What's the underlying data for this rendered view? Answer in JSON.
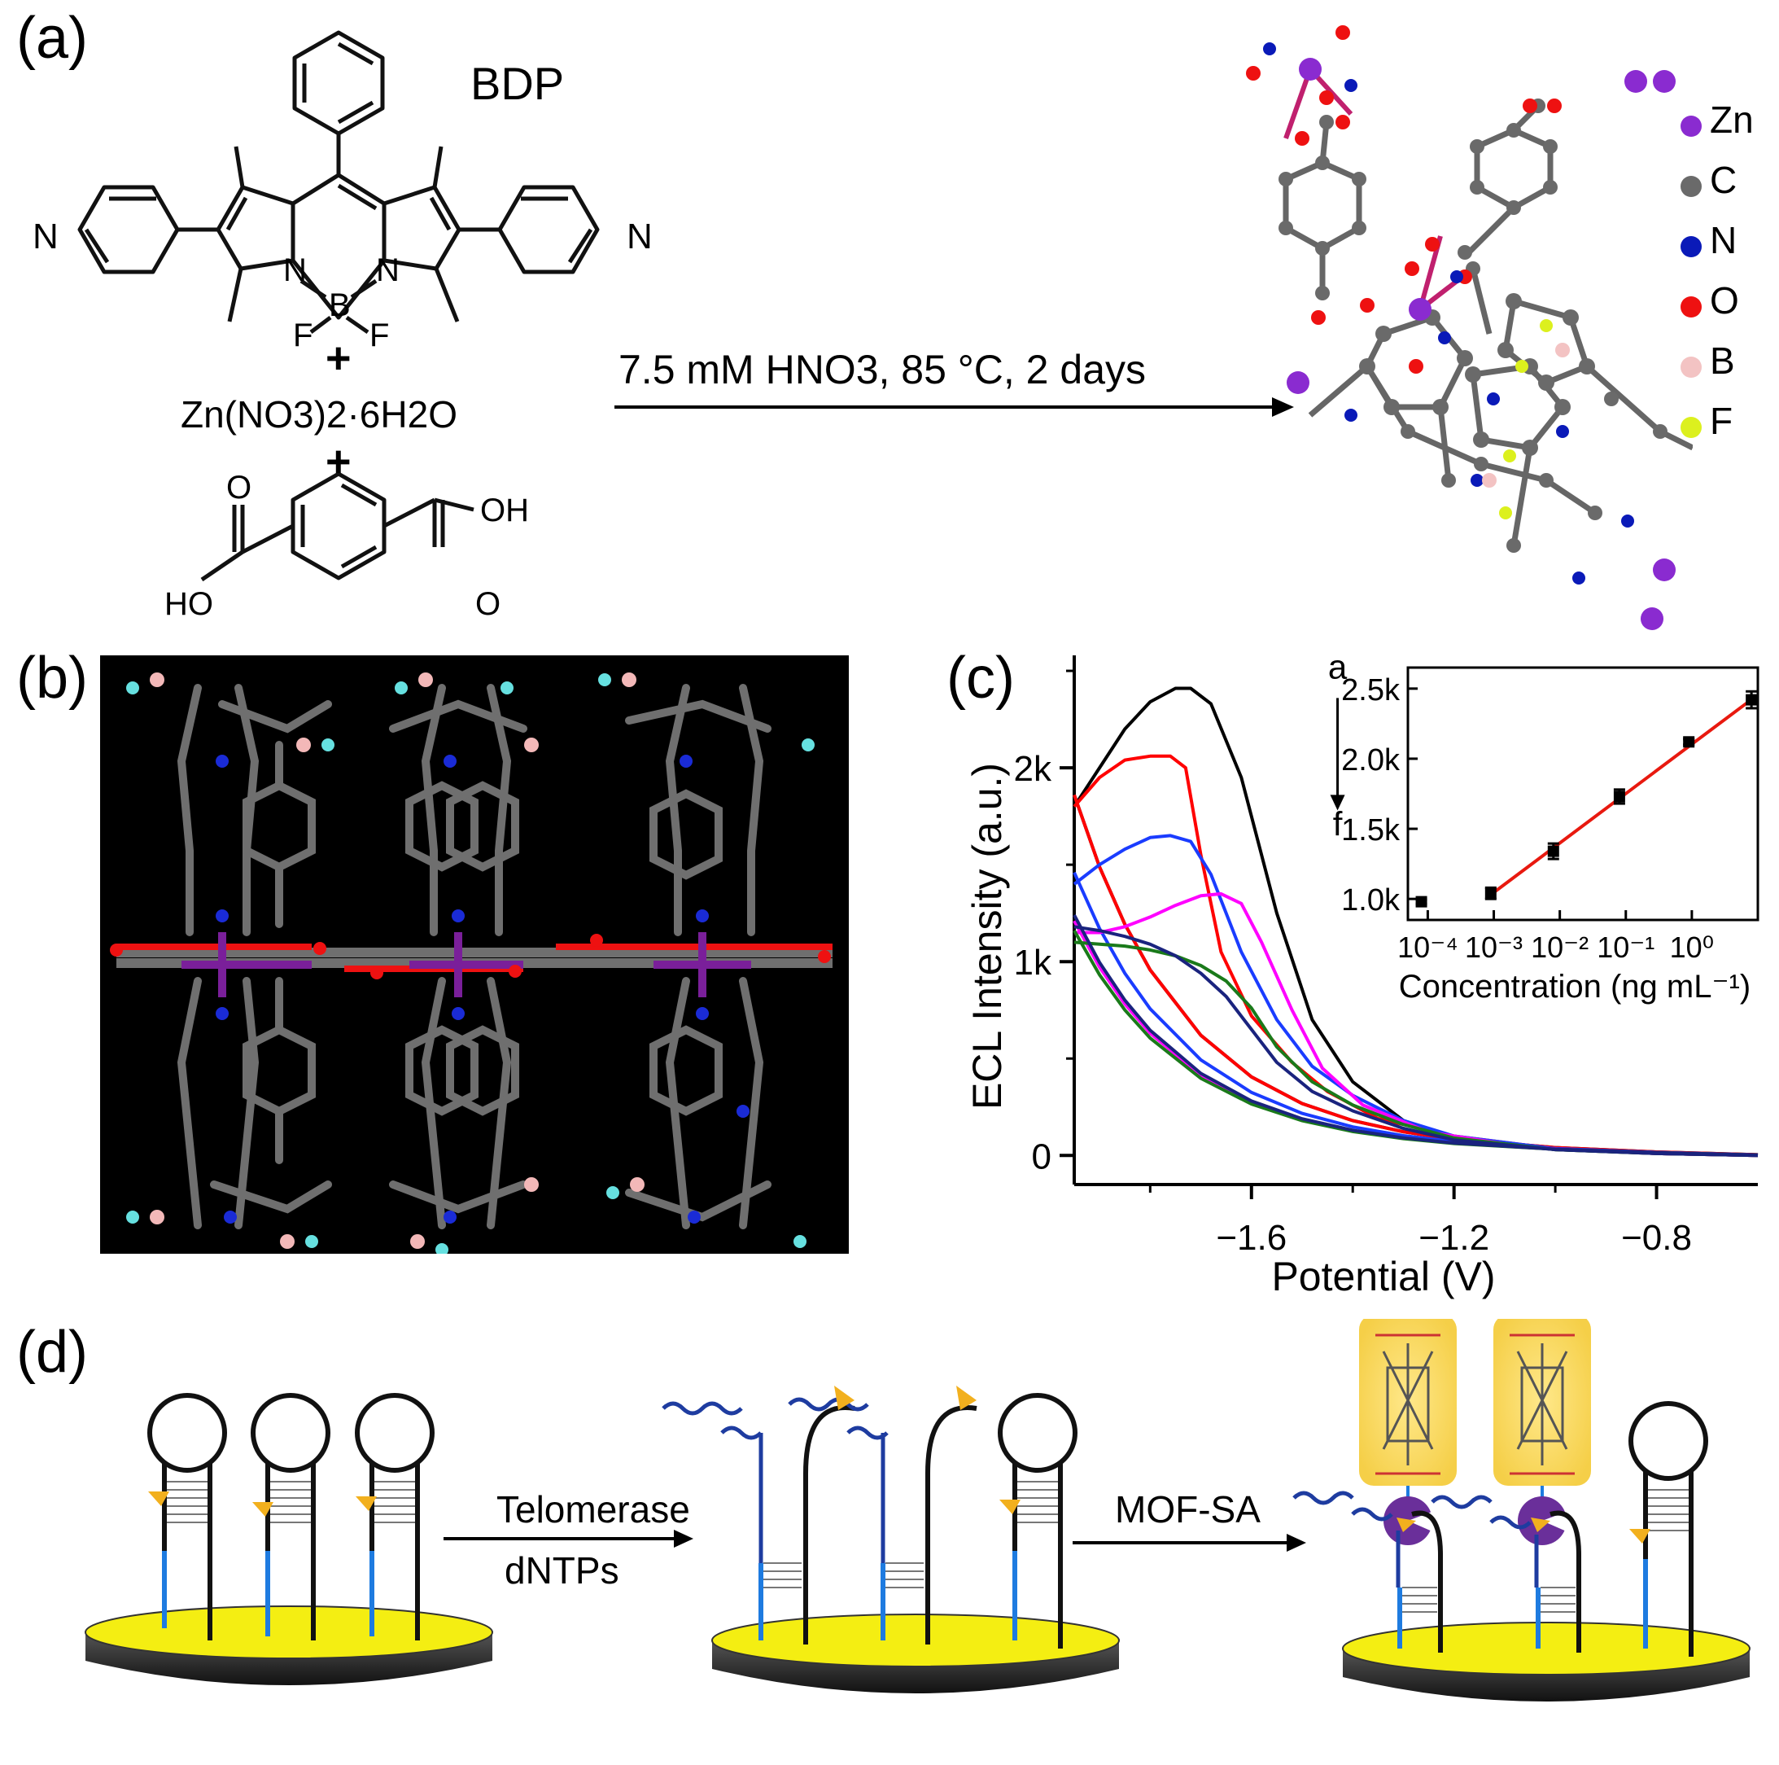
{
  "panels": {
    "a": {
      "label": "(a)",
      "bdp_label": "BDP",
      "salt": "Zn(NO3)2·6H2O",
      "plus": "+",
      "reaction_condition": "7.5 mM HNO3, 85 °C,  2 days",
      "atoms": {
        "n": "N",
        "b": "B",
        "f": "F",
        "oh": "OH",
        "ho": "HO",
        "o": "O"
      },
      "legend": [
        {
          "symbol": "Zn",
          "color": "#8a2bd0"
        },
        {
          "symbol": "C",
          "color": "#6a6a6a"
        },
        {
          "symbol": "N",
          "color": "#0a1ab8"
        },
        {
          "symbol": "O",
          "color": "#ee1111"
        },
        {
          "symbol": "B",
          "color": "#f3c3c3"
        },
        {
          "symbol": "F",
          "color": "#dcf01e"
        }
      ]
    },
    "b": {
      "label": "(b)"
    },
    "c": {
      "label": "(c)"
    },
    "d": {
      "label": "(d)",
      "step1_top": "Telomerase",
      "step1_bottom": "dNTPs",
      "step2": "MOF-SA"
    }
  },
  "chart_data": [
    {
      "type": "line",
      "xlabel": "Potential (V)",
      "ylabel": "ECL Intensity (a.u.)",
      "xlim": [
        -1.95,
        -0.6
      ],
      "ylim": [
        -150,
        2580
      ],
      "x_ticks": [
        -1.6,
        -1.2,
        -0.8
      ],
      "x_tick_labels": [
        "−1.6",
        "−1.2",
        "−0.8"
      ],
      "y_ticks": [
        0,
        1000,
        2000
      ],
      "y_tick_labels": [
        "0",
        "1k",
        "2k"
      ],
      "curve_labels": {
        "top": "a",
        "bottom": "f"
      },
      "series": [
        {
          "color": "#000000",
          "forward_x": [
            -1.95,
            -1.9,
            -1.85,
            -1.8,
            -1.75,
            -1.72,
            -1.68,
            -1.62,
            -1.55,
            -1.48,
            -1.4,
            -1.3,
            -1.2,
            -1.0,
            -0.8,
            -0.6
          ],
          "forward_y": [
            1800,
            2000,
            2200,
            2340,
            2410,
            2410,
            2330,
            1950,
            1250,
            700,
            380,
            180,
            90,
            30,
            10,
            0
          ]
        },
        {
          "color": "#ff0000",
          "forward_x": [
            -1.95,
            -1.9,
            -1.85,
            -1.8,
            -1.76,
            -1.73,
            -1.7,
            -1.66,
            -1.6,
            -1.52,
            -1.45,
            -1.35,
            -1.2,
            -1.0,
            -0.8,
            -0.6
          ],
          "forward_y": [
            1800,
            1950,
            2040,
            2060,
            2060,
            2000,
            1550,
            1050,
            720,
            480,
            330,
            190,
            100,
            35,
            10,
            0
          ]
        },
        {
          "color": "#1a3cff",
          "forward_x": [
            -1.95,
            -1.9,
            -1.85,
            -1.8,
            -1.76,
            -1.72,
            -1.68,
            -1.62,
            -1.55,
            -1.48,
            -1.4,
            -1.3,
            -1.2,
            -1.0,
            -0.8,
            -0.6
          ],
          "forward_y": [
            1400,
            1500,
            1580,
            1640,
            1650,
            1620,
            1450,
            1050,
            700,
            460,
            310,
            180,
            100,
            35,
            10,
            0
          ]
        },
        {
          "color": "#ff00ff",
          "forward_x": [
            -1.95,
            -1.9,
            -1.85,
            -1.8,
            -1.75,
            -1.7,
            -1.66,
            -1.62,
            -1.58,
            -1.52,
            -1.46,
            -1.38,
            -1.25,
            -1.05,
            -0.8,
            -0.6
          ],
          "forward_y": [
            1150,
            1150,
            1180,
            1230,
            1290,
            1340,
            1350,
            1300,
            1100,
            750,
            450,
            260,
            120,
            40,
            10,
            0
          ]
        },
        {
          "color": "#1a7a1a",
          "forward_x": [
            -1.95,
            -1.9,
            -1.85,
            -1.8,
            -1.75,
            -1.7,
            -1.65,
            -1.6,
            -1.55,
            -1.48,
            -1.4,
            -1.3,
            -1.2,
            -1.0,
            -0.8,
            -0.6
          ],
          "forward_y": [
            1100,
            1090,
            1080,
            1060,
            1030,
            980,
            900,
            760,
            560,
            380,
            260,
            160,
            90,
            30,
            10,
            0
          ]
        },
        {
          "color": "#1a237e",
          "forward_x": [
            -1.95,
            -1.9,
            -1.85,
            -1.8,
            -1.75,
            -1.7,
            -1.65,
            -1.6,
            -1.55,
            -1.48,
            -1.4,
            -1.3,
            -1.2,
            -1.0,
            -0.8,
            -0.6
          ],
          "forward_y": [
            1180,
            1160,
            1130,
            1090,
            1030,
            940,
            820,
            650,
            480,
            330,
            230,
            140,
            80,
            30,
            10,
            0
          ]
        }
      ]
    },
    {
      "type": "scatter",
      "xlabel": "Concentration (ng mL⁻¹)",
      "x_scale": "log",
      "xlim": [
        5e-05,
        10
      ],
      "ylim": [
        850,
        2650
      ],
      "x_tick_values": [
        0.0001,
        0.001,
        0.01,
        0.1,
        1
      ],
      "x_tick_labels": [
        "10⁻⁴",
        "10⁻³",
        "10⁻²",
        "10⁻¹",
        "10⁰"
      ],
      "y_ticks": [
        1000,
        1500,
        2000,
        2500
      ],
      "y_tick_labels": [
        "1.0k",
        "1.5k",
        "2.0k",
        "2.5k"
      ],
      "points": [
        {
          "x": 8e-05,
          "y": 980,
          "err": 15
        },
        {
          "x": 0.0009,
          "y": 1040,
          "err": 40
        },
        {
          "x": 0.008,
          "y": 1340,
          "err": 55
        },
        {
          "x": 0.08,
          "y": 1730,
          "err": 50
        },
        {
          "x": 0.9,
          "y": 2120,
          "err": 20
        },
        {
          "x": 8,
          "y": 2420,
          "err": 60
        }
      ],
      "fit_line": {
        "x": [
          0.0009,
          9
        ],
        "y": [
          1030,
          2440
        ],
        "color": "#e8190f"
      }
    }
  ]
}
